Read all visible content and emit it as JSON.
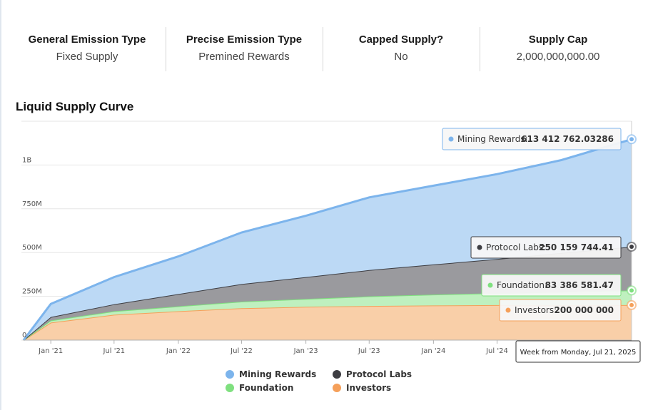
{
  "stats": [
    {
      "label": "General Emission Type",
      "value": "Fixed Supply"
    },
    {
      "label": "Precise Emission Type",
      "value": "Premined Rewards"
    },
    {
      "label": "Capped Supply?",
      "value": "No"
    },
    {
      "label": "Supply Cap",
      "value": "2,000,000,000.00"
    }
  ],
  "chart_title": "Liquid Supply Curve",
  "crosshair_label": "Week from Monday, Jul 21, 2025",
  "chart_data": {
    "type": "area",
    "stacked": true,
    "x_start": "2020-10-15",
    "x_end": "2025-07-21",
    "x_tick_labels": [
      {
        "label": "Jan '21",
        "date": "2021-01-01"
      },
      {
        "label": "Jul '21",
        "date": "2021-07-01"
      },
      {
        "label": "Jan '22",
        "date": "2022-01-01"
      },
      {
        "label": "Jul '22",
        "date": "2022-07-01"
      },
      {
        "label": "Jan '23",
        "date": "2023-01-01"
      },
      {
        "label": "Jul '23",
        "date": "2023-07-01"
      },
      {
        "label": "Jan '24",
        "date": "2024-01-01"
      },
      {
        "label": "Jul '24",
        "date": "2024-07-01"
      }
    ],
    "y_ticks": [
      {
        "label": "0",
        "value": 0
      },
      {
        "label": "250M",
        "value": 250000000
      },
      {
        "label": "500M",
        "value": 500000000
      },
      {
        "label": "750M",
        "value": 750000000
      },
      {
        "label": "1B",
        "value": 1000000000
      }
    ],
    "ylim": [
      0,
      1250000000
    ],
    "grid": true,
    "legend_position": "bottom",
    "x": [
      "2020-10-15",
      "2021-01-01",
      "2021-07-01",
      "2022-01-01",
      "2022-07-01",
      "2023-01-01",
      "2023-07-01",
      "2024-01-01",
      "2024-07-01",
      "2025-01-01",
      "2025-07-21"
    ],
    "series": [
      {
        "name": "Investors",
        "color": "#f5a05a",
        "fill": "#f9cfa8",
        "values": [
          0,
          100000000,
          145000000,
          165000000,
          182000000,
          190000000,
          195000000,
          198000000,
          200000000,
          200000000,
          200000000
        ]
      },
      {
        "name": "Foundation",
        "color": "#7fe07f",
        "fill": "#bff0bf",
        "values": [
          0,
          12000000,
          20000000,
          28000000,
          38000000,
          45000000,
          55000000,
          62000000,
          68000000,
          76000000,
          83386581.47
        ]
      },
      {
        "name": "Protocol Labs",
        "color": "#3d3d42",
        "fill": "#9a9a9e",
        "values": [
          0,
          20000000,
          40000000,
          70000000,
          100000000,
          125000000,
          150000000,
          172000000,
          195000000,
          222000000,
          250159744.41
        ]
      },
      {
        "name": "Mining Rewards",
        "color": "#7cb4ec",
        "fill": "#bcd9f5",
        "values": [
          0,
          75000000,
          155000000,
          215000000,
          295000000,
          350000000,
          415000000,
          450000000,
          485000000,
          530000000,
          613412762.03286
        ]
      }
    ],
    "tooltips": [
      {
        "series": "Mining Rewards",
        "label": "Mining Rewards:",
        "value": "613 412 762.03286"
      },
      {
        "series": "Protocol Labs",
        "label": "Protocol Labs:",
        "value": "250 159 744.41"
      },
      {
        "series": "Foundation",
        "label": "Foundation:",
        "value": "83 386 581.47"
      },
      {
        "series": "Investors",
        "label": "Investors:",
        "value": "200 000 000"
      }
    ],
    "legend": [
      {
        "name": "Mining Rewards",
        "color": "#7cb4ec"
      },
      {
        "name": "Protocol Labs",
        "color": "#3d3d42"
      },
      {
        "name": "Foundation",
        "color": "#7fe07f"
      },
      {
        "name": "Investors",
        "color": "#f5a05a"
      }
    ]
  }
}
